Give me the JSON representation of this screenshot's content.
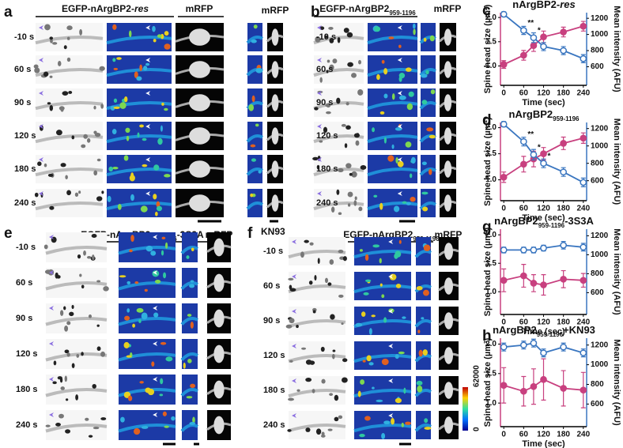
{
  "panels": [
    {
      "label": "a",
      "headers": [
        {
          "parts": [
            {
              "text": "EGFP-nArgBP2-"
            },
            {
              "text": "res",
              "style": "italic"
            }
          ]
        },
        {
          "parts": [
            {
              "text": "mRFP"
            }
          ]
        },
        {
          "parts": [
            {
              "text": "mRFP"
            }
          ]
        }
      ],
      "rows": [
        "-10 s",
        "60 s",
        "90 s",
        "120 s",
        "180 s",
        "240 s"
      ]
    },
    {
      "label": "b",
      "headers": [
        {
          "parts": [
            {
              "text": "EGFP-nArgBP2"
            },
            {
              "text": "959-1196",
              "style": "sub"
            }
          ]
        },
        {
          "parts": [
            {
              "text": "mRFP"
            }
          ]
        }
      ],
      "rows": [
        "-10 s",
        "60 s",
        "90 s",
        "120 s",
        "180 s",
        "240 s"
      ]
    },
    {
      "label": "e",
      "headers": [
        {
          "parts": [
            {
              "text": "EGFP-nArgBP2"
            },
            {
              "text": "959-1196",
              "style": "sub"
            },
            {
              "text": "-3S3A"
            }
          ]
        },
        {
          "parts": [
            {
              "text": "mRFP"
            }
          ]
        }
      ],
      "rows": [
        "-10 s",
        "60 s",
        "90 s",
        "120 s",
        "180 s",
        "240 s"
      ]
    },
    {
      "label": "f",
      "note": "KN93",
      "headers": [
        {
          "parts": [
            {
              "text": "EGFP-nArgBP2"
            },
            {
              "text": "959-1196",
              "style": "sub"
            }
          ]
        },
        {
          "parts": [
            {
              "text": "mRFP"
            }
          ]
        }
      ],
      "rows": [
        "-10 s",
        "60 s",
        "90 s",
        "120 s",
        "180 s",
        "240 s"
      ],
      "colorbar": {
        "min": 0,
        "max": 62000
      }
    }
  ],
  "chart_data": [
    {
      "type": "line",
      "panel": "c",
      "title": [
        {
          "text": "nArgBP2-"
        },
        {
          "text": "res",
          "style": "italic"
        }
      ],
      "x": [
        0,
        60,
        90,
        120,
        180,
        240
      ],
      "xlim": [
        -10,
        250
      ],
      "xticks": [
        0,
        60,
        120,
        180,
        240
      ],
      "ylim": [
        0.6,
        2.1
      ],
      "yticks": [
        {
          "value": 1,
          "label": "1.0"
        },
        1.5,
        {
          "value": 2,
          "label": "2.0"
        }
      ],
      "y2lim": [
        370,
        1270
      ],
      "y2ticks": [
        600,
        800,
        1000,
        1200
      ],
      "xlabel": "Time (sec)",
      "ylabel": "Spine head size (µm²)",
      "y2label": "Mean intensity (AFU)",
      "series": [
        {
          "color": "#c8407f",
          "values": [
            1.03,
            1.22,
            1.42,
            1.6,
            1.7,
            1.82
          ],
          "errors": [
            0.08,
            0.1,
            0.12,
            0.12,
            0.1,
            0.1
          ]
        },
        {
          "color": "#3a76c0",
          "axis": "y2",
          "values": [
            1250,
            1050,
            960,
            850,
            800,
            700
          ],
          "errors": [
            30,
            50,
            60,
            50,
            50,
            50
          ]
        }
      ],
      "annotations": [
        {
          "text": "**",
          "x": 60
        },
        {
          "text": "*",
          "x": 90
        }
      ]
    },
    {
      "type": "line",
      "panel": "d",
      "title": [
        {
          "text": "nArgBP2"
        },
        {
          "text": "959-1196",
          "style": "sub"
        }
      ],
      "x": [
        0,
        60,
        90,
        120,
        180,
        240
      ],
      "xlim": [
        -10,
        250
      ],
      "xticks": [
        0,
        60,
        120,
        180,
        240
      ],
      "ylim": [
        0.6,
        2.1
      ],
      "yticks": [
        {
          "value": 1,
          "label": "1.0"
        },
        1.5,
        {
          "value": 2,
          "label": "2.0"
        }
      ],
      "y2lim": [
        370,
        1270
      ],
      "y2ticks": [
        600,
        800,
        1000,
        1200
      ],
      "xlabel": "Time (sec)",
      "ylabel": "Spine head size (µm²)",
      "y2label": "Mean intensity (AFU)",
      "series": [
        {
          "color": "#c8407f",
          "values": [
            1.05,
            1.3,
            1.4,
            1.5,
            1.7,
            1.8
          ],
          "errors": [
            0.1,
            0.15,
            0.15,
            0.12,
            0.12,
            0.1
          ]
        },
        {
          "color": "#3a76c0",
          "axis": "y2",
          "values": [
            1250,
            1050,
            900,
            800,
            700,
            580
          ],
          "errors": [
            30,
            50,
            60,
            50,
            50,
            50
          ]
        }
      ],
      "annotations": [
        {
          "text": "**",
          "x": 60
        },
        {
          "text": "*",
          "x": 90
        },
        {
          "text": "*",
          "x": 120
        }
      ]
    },
    {
      "type": "line",
      "panel": "g",
      "title": [
        {
          "text": "nArgBP2"
        },
        {
          "text": "959-1196",
          "style": "sub"
        },
        {
          "text": "-3S3A"
        }
      ],
      "x": [
        0,
        60,
        90,
        120,
        180,
        240
      ],
      "xlim": [
        -10,
        250
      ],
      "xticks": [
        0,
        60,
        120,
        180,
        240
      ],
      "ylim": [
        0.6,
        2.1
      ],
      "yticks": [
        {
          "value": 1,
          "label": "1.0"
        },
        1.5,
        {
          "value": 2,
          "label": "2.0"
        }
      ],
      "y2lim": [
        370,
        1270
      ],
      "y2ticks": [
        600,
        800,
        1000,
        1200
      ],
      "xlabel": "Time (sec)",
      "ylabel": "Spine head size (µm²)",
      "y2label": "Mean intensity (AFU)",
      "series": [
        {
          "color": "#c8407f",
          "values": [
            1.2,
            1.28,
            1.15,
            1.12,
            1.22,
            1.2
          ],
          "errors": [
            0.2,
            0.2,
            0.15,
            0.18,
            0.15,
            0.12
          ]
        },
        {
          "color": "#3a76c0",
          "axis": "y2",
          "values": [
            1050,
            1050,
            1050,
            1070,
            1100,
            1080
          ],
          "errors": [
            30,
            30,
            30,
            30,
            40,
            40
          ]
        }
      ],
      "annotations": []
    },
    {
      "type": "line",
      "panel": "h",
      "title": [
        {
          "text": "nArgBP2"
        },
        {
          "text": "959-1196",
          "style": "sub"
        },
        {
          "text": "+KN93"
        }
      ],
      "x": [
        0,
        60,
        90,
        120,
        180,
        240
      ],
      "xlim": [
        -10,
        250
      ],
      "xticks": [
        0,
        60,
        120,
        180,
        240
      ],
      "ylim": [
        0.6,
        2.1
      ],
      "yticks": [
        {
          "value": 1,
          "label": "1.0"
        },
        1.5,
        {
          "value": 2,
          "label": "2.0"
        }
      ],
      "y2lim": [
        370,
        1270
      ],
      "y2ticks": [
        600,
        800,
        1000,
        1200
      ],
      "xlabel": "Time (sec)",
      "ylabel": "Spine head size (µm²)",
      "y2label": "Mean intensity (AFU)",
      "series": [
        {
          "color": "#c8407f",
          "values": [
            1.3,
            1.2,
            1.28,
            1.4,
            1.25,
            1.22
          ],
          "errors": [
            0.3,
            0.25,
            0.3,
            0.35,
            0.3,
            0.3
          ]
        },
        {
          "color": "#3a76c0",
          "axis": "y2",
          "values": [
            1180,
            1200,
            1220,
            1120,
            1180,
            1120
          ],
          "errors": [
            40,
            40,
            40,
            40,
            40,
            40
          ]
        }
      ],
      "annotations": []
    }
  ]
}
